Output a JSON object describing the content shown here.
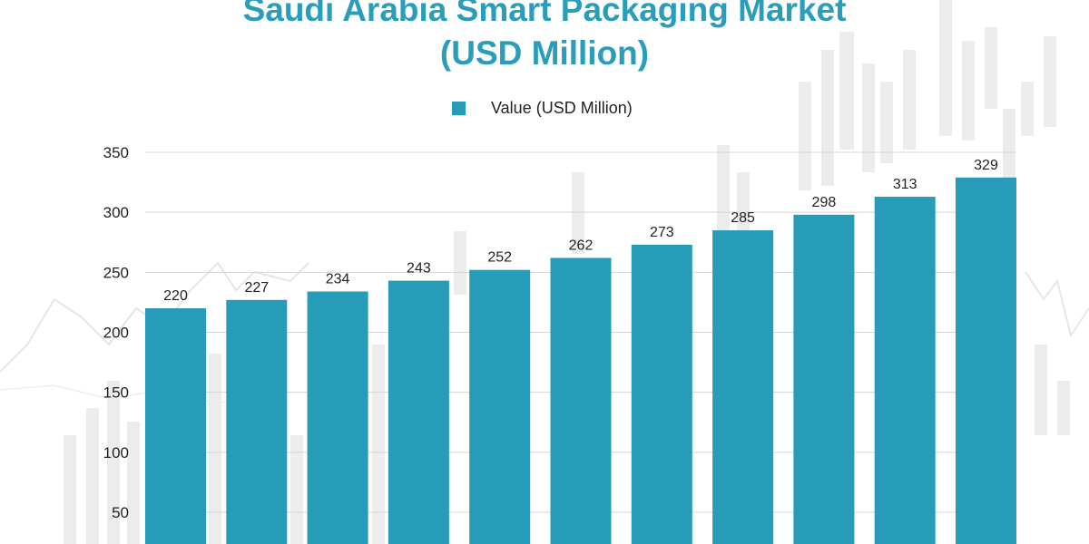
{
  "colors": {
    "title": "#2a9dba",
    "bar": "#279cb8",
    "grid": "#d4d4d4",
    "text": "#222222"
  },
  "chart_data": {
    "type": "bar",
    "title": "Saudi Arabia Smart Packaging Market",
    "subtitle": "(USD Million)",
    "xlabel": "",
    "ylabel": "",
    "legend_position": "top-center",
    "grid": true,
    "ylim": [
      0,
      350
    ],
    "yticks": [
      50,
      100,
      150,
      200,
      250,
      300,
      350
    ],
    "series": [
      {
        "name": "Value (USD Million)",
        "values": [
          220,
          227,
          234,
          243,
          252,
          262,
          273,
          285,
          298,
          313,
          329
        ]
      }
    ]
  }
}
